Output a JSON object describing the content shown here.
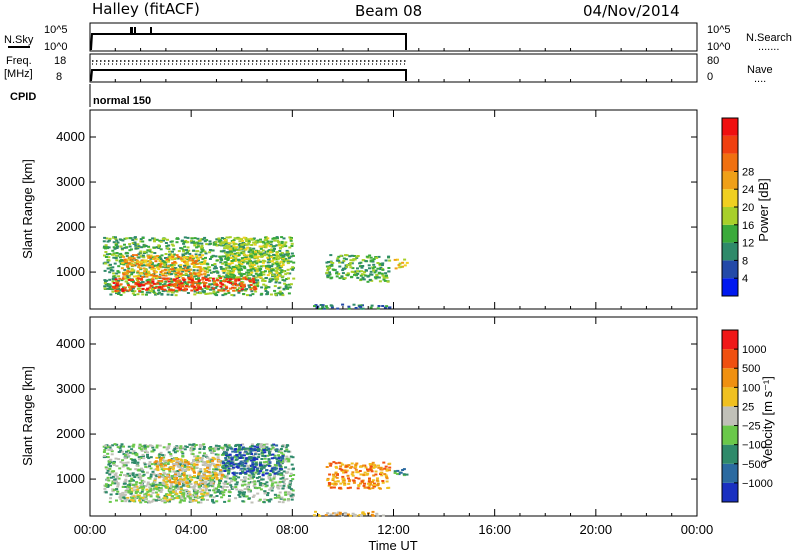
{
  "header": {
    "station": "Halley (fitACF)",
    "beam": "Beam 08",
    "date": "04/Nov/2014"
  },
  "panel_labels": {
    "nsky": "N.Sky",
    "nsearch": "N.Search",
    "nsearch_dots": ".......",
    "freq": "Freq.",
    "freq_unit": "[MHz]",
    "nave": "Nave",
    "nave_dots": "....",
    "cpid": "CPID",
    "cpid_value": "normal 150",
    "noise_ticks_left": [
      "10^5",
      "10^0"
    ],
    "noise_ticks_right": [
      "10^5",
      "10^0"
    ],
    "freq_ticks": [
      "18",
      "8"
    ],
    "nave_ticks": [
      "80",
      "0"
    ]
  },
  "chart_data": [
    {
      "type": "heatmap",
      "title": "",
      "ylabel": "Slant Range [km]",
      "xlabel": "",
      "ylim": [
        180,
        4600
      ],
      "yticks": [
        "1000",
        "2000",
        "3000",
        "4000"
      ],
      "colorbar": {
        "label": "Power [dB]",
        "ticks": [
          "4",
          "8",
          "12",
          "16",
          "20",
          "24",
          "28"
        ],
        "colors": [
          "#0019f0",
          "#2349a8",
          "#2f8a6a",
          "#3aaa3a",
          "#a8d02a",
          "#f0d020",
          "#f0a018",
          "#f07010",
          "#f04010",
          "#f01010"
        ]
      },
      "regions": [
        {
          "t0": 0.5,
          "t1": 8.0,
          "r0": 500,
          "r1": 1800,
          "level": 3
        },
        {
          "t0": 0.8,
          "t1": 6.5,
          "r0": 600,
          "r1": 900,
          "level": 8
        },
        {
          "t0": 1.2,
          "t1": 4.5,
          "r0": 900,
          "r1": 1400,
          "level": 6
        },
        {
          "t0": 5.2,
          "t1": 7.6,
          "r0": 900,
          "r1": 1800,
          "level": 4
        },
        {
          "t0": 8.8,
          "t1": 11.8,
          "r0": 200,
          "r1": 300,
          "level": 2
        },
        {
          "t0": 9.3,
          "t1": 11.8,
          "r0": 800,
          "r1": 1400,
          "level": 3
        },
        {
          "t0": 12.0,
          "t1": 12.5,
          "r0": 1100,
          "r1": 1300,
          "level": 5
        }
      ]
    },
    {
      "type": "heatmap",
      "title": "",
      "ylabel": "Slant Range [km]",
      "xlabel": "Time UT",
      "ylim": [
        180,
        4600
      ],
      "yticks": [
        "1000",
        "2000",
        "3000",
        "4000"
      ],
      "xticks": [
        "00:00",
        "04:00",
        "08:00",
        "12:00",
        "16:00",
        "20:00",
        "00:00"
      ],
      "colorbar": {
        "label": "Velocity [m s⁻¹]",
        "ticks": [
          "1000",
          "500",
          "100",
          "25",
          "−25",
          "−100",
          "−500",
          "−1000"
        ],
        "colors": [
          "#1a30c0",
          "#2b6aa0",
          "#2f8a6a",
          "#6ac84a",
          "#c0c0b8",
          "#f0c020",
          "#f09010",
          "#f05010",
          "#f01818"
        ]
      },
      "regions": [
        {
          "t0": 0.5,
          "t1": 8.0,
          "r0": 500,
          "r1": 1800,
          "level": 3
        },
        {
          "t0": 1.3,
          "t1": 4.6,
          "r0": 500,
          "r1": 900,
          "level": 4
        },
        {
          "t0": 2.5,
          "t1": 5.2,
          "r0": 900,
          "r1": 1500,
          "level": 5
        },
        {
          "t0": 5.2,
          "t1": 7.6,
          "r0": 1100,
          "r1": 1800,
          "level": 1
        },
        {
          "t0": 8.8,
          "t1": 11.8,
          "r0": 200,
          "r1": 300,
          "level": 5
        },
        {
          "t0": 9.3,
          "t1": 11.8,
          "r0": 800,
          "r1": 1400,
          "level": 6
        },
        {
          "t0": 12.0,
          "t1": 12.5,
          "r0": 1100,
          "r1": 1300,
          "level": 2
        }
      ]
    }
  ]
}
